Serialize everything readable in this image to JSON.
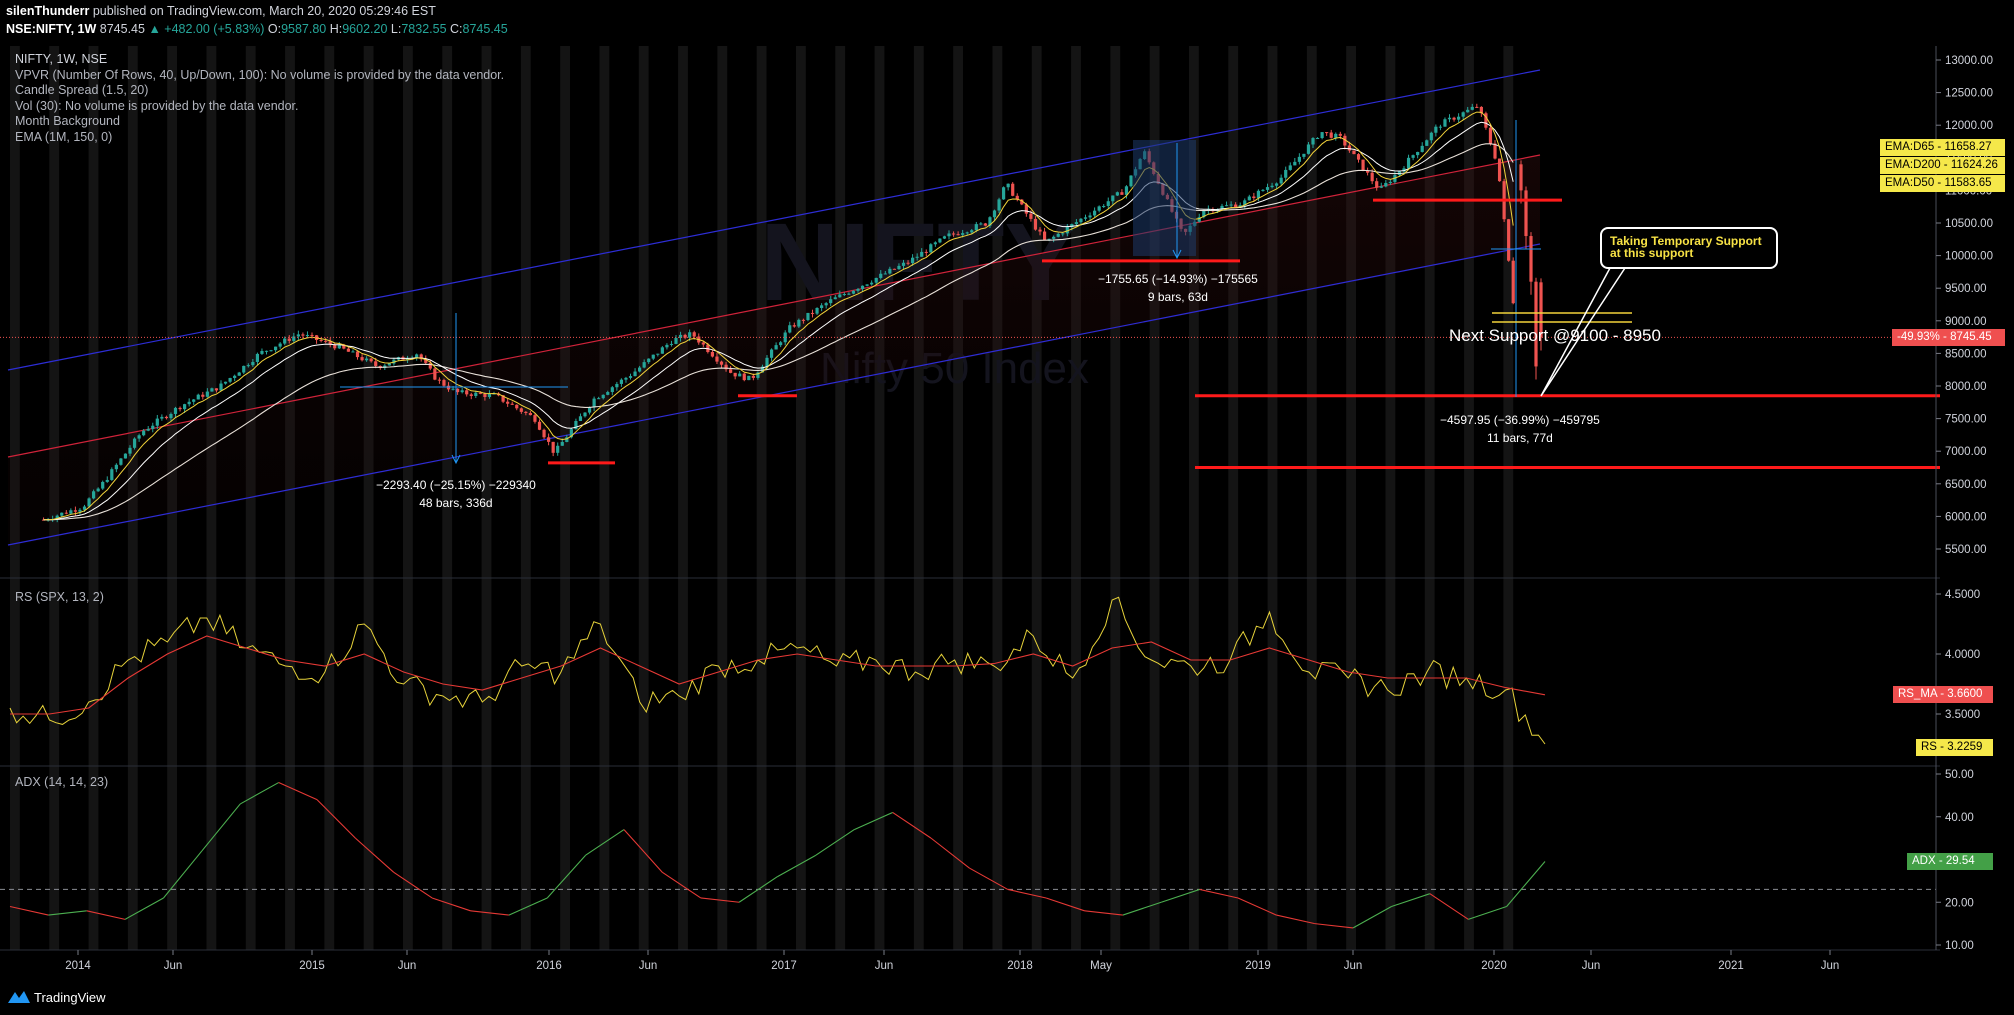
{
  "header": {
    "author": "silenThunderr",
    "published": "published on TradingView.com, March 20, 2020 05:29:46 EST",
    "symbol": "NSE:NIFTY, 1W",
    "price": "8745.45",
    "change": "▲ +482.00 (+5.83%)",
    "o_label": "O:",
    "o_val": "9587.80",
    "h_label": "H:",
    "h_val": "9602.20",
    "l_label": "L:",
    "l_val": "7832.55",
    "c_label": "C:",
    "c_val": "8745.45"
  },
  "legend": {
    "main": [
      "NIFTY, 1W, NSE",
      "VPVR (Number Of Rows, 40, Up/Down, 100): No volume is provided by the data vendor.",
      "Candle Spread (1.5, 20)",
      "Vol (30): No volume is provided by the data vendor.",
      "Month Background",
      "EMA (1M, 150, 0)"
    ],
    "rs": "RS (SPX, 13, 2)",
    "adx": "ADX (14, 14, 23)"
  },
  "annotations": {
    "m1_line1": "−2293.40 (−25.15%) −229340",
    "m1_line2": "48 bars, 336d",
    "m2_line1": "−1755.65 (−14.93%) −175565",
    "m2_line2": "9 bars, 63d",
    "m3_line1": "−4597.95 (−36.99%) −459795",
    "m3_line2": "11 bars, 77d",
    "next_support": "Next Support @9100 - 8950",
    "callout_line1": "Taking Temporary Support",
    "callout_line2": "at this support",
    "watermark_symbol": "NIFTY",
    "watermark_name": "Nifty 50 Index"
  },
  "badges": {
    "ema65": "EMA:D65",
    "ema65_val": "11658.27",
    "ema200": "EMA:D200",
    "ema200_val": "11624.26",
    "ema50": "EMA:D50",
    "ema50_val": "11583.65",
    "price_pct": "-49.93%",
    "price_val": "8745.45",
    "rs_ma": "RS_MA",
    "rs_ma_val": "3.6600",
    "rs": "RS",
    "rs_val": "3.2259",
    "adx": "ADX",
    "adx_val": "29.54"
  },
  "footer": {
    "brand": "TradingView"
  },
  "colors": {
    "up": "#26a69a",
    "down": "#ef5350",
    "channel_blue": "#2d2dd6",
    "channel_red": "#d0233a",
    "support_red": "#ff1a1a",
    "ema_yellow": "#f2d33a",
    "rs_line": "#e6d23a",
    "rs_ma": "#e53935",
    "adx_green": "#4caf50",
    "adx_red": "#e53935",
    "measure_blue": "#2196f3"
  },
  "chart_data": [
    {
      "type": "candlestick",
      "title": "NIFTY, 1W, NSE",
      "x_ticks": [
        "2014",
        "Jun",
        "2015",
        "Jun",
        "2016",
        "Jun",
        "2017",
        "Jun",
        "2018",
        "May",
        "2019",
        "Jun",
        "2020",
        "Jun",
        "2021",
        "Jun"
      ],
      "y_ticks": [
        13000,
        12500,
        12000,
        11500,
        11000,
        10500,
        10000,
        9500,
        9000,
        8500,
        8000,
        7500,
        7000,
        6500,
        6000,
        5500
      ],
      "ylim": [
        5000,
        13200
      ],
      "close_path": [
        [
          "2013-12",
          5950
        ],
        [
          "2014-02",
          6150
        ],
        [
          "2014-03",
          6500
        ],
        [
          "2014-05",
          7300
        ],
        [
          "2014-07",
          7700
        ],
        [
          "2014-09",
          8000
        ],
        [
          "2014-11",
          8500
        ],
        [
          "2015-01",
          8800
        ],
        [
          "2015-03",
          8600
        ],
        [
          "2015-05",
          8300
        ],
        [
          "2015-07",
          8500
        ],
        [
          "2015-08",
          8100
        ],
        [
          "2015-09",
          7900
        ],
        [
          "2015-11",
          7850
        ],
        [
          "2016-01",
          7500
        ],
        [
          "2016-02",
          6970
        ],
        [
          "2016-04",
          7800
        ],
        [
          "2016-06",
          8200
        ],
        [
          "2016-08",
          8700
        ],
        [
          "2016-09",
          8800
        ],
        [
          "2016-11",
          8200
        ],
        [
          "2016-12",
          8100
        ],
        [
          "2017-02",
          8900
        ],
        [
          "2017-04",
          9300
        ],
        [
          "2017-06",
          9600
        ],
        [
          "2017-08",
          9900
        ],
        [
          "2017-10",
          10300
        ],
        [
          "2017-12",
          10500
        ],
        [
          "2018-01",
          11100
        ],
        [
          "2018-03",
          10200
        ],
        [
          "2018-05",
          10600
        ],
        [
          "2018-07",
          11000
        ],
        [
          "2018-08",
          11600
        ],
        [
          "2018-10",
          10300
        ],
        [
          "2018-11",
          10700
        ],
        [
          "2019-01",
          10800
        ],
        [
          "2019-03",
          11200
        ],
        [
          "2019-05",
          11900
        ],
        [
          "2019-06",
          11800
        ],
        [
          "2019-08",
          11000
        ],
        [
          "2019-09",
          11300
        ],
        [
          "2019-11",
          12000
        ],
        [
          "2020-01",
          12300
        ],
        [
          "2020-02",
          11400
        ],
        [
          "2020-03",
          8745
        ]
      ],
      "support_levels": [
        10850,
        7850,
        6750
      ],
      "measurements": [
        {
          "change": -2293.4,
          "pct": -25.15,
          "bars": 48,
          "days": 336
        },
        {
          "change": -1755.65,
          "pct": -14.93,
          "bars": 9,
          "days": 63
        },
        {
          "change": -4597.95,
          "pct": -36.99,
          "bars": 11,
          "days": 77
        }
      ],
      "last_price": 8745.45,
      "ema": {
        "D65": 11658.27,
        "D200": 11624.26,
        "D50": 11583.65
      }
    },
    {
      "type": "line",
      "title": "RS (SPX, 13, 2)",
      "y_ticks": [
        4.5,
        4.0,
        3.5
      ],
      "ylim": [
        2.7,
        4.6
      ],
      "series": [
        {
          "name": "RS",
          "last": 3.2259,
          "values": [
            3.55,
            3.45,
            3.6,
            3.95,
            4.1,
            4.3,
            4.05,
            3.9,
            3.85,
            4.25,
            3.75,
            3.65,
            3.6,
            3.9,
            3.85,
            4.25,
            3.6,
            3.65,
            3.9,
            3.95,
            4.05,
            3.9,
            3.95,
            3.85,
            3.95,
            3.9,
            4.15,
            3.8,
            4.45,
            3.95,
            3.9,
            3.95,
            4.35,
            3.85,
            3.8,
            3.7,
            3.85,
            3.8,
            3.7,
            3.25
          ]
        },
        {
          "name": "RS_MA",
          "last": 3.66,
          "values": [
            3.5,
            3.5,
            3.55,
            3.8,
            4.0,
            4.15,
            4.05,
            3.95,
            3.9,
            4.0,
            3.85,
            3.75,
            3.7,
            3.8,
            3.9,
            4.05,
            3.9,
            3.75,
            3.85,
            3.95,
            4.0,
            3.95,
            3.9,
            3.9,
            3.9,
            3.92,
            4.0,
            3.9,
            4.05,
            4.1,
            3.95,
            3.95,
            4.05,
            3.95,
            3.85,
            3.8,
            3.8,
            3.8,
            3.72,
            3.66
          ]
        }
      ]
    },
    {
      "type": "line",
      "title": "ADX (14, 14, 23)",
      "y_ticks": [
        50,
        40,
        20,
        10
      ],
      "ylim": [
        10,
        50
      ],
      "threshold": 23,
      "series": [
        {
          "name": "ADX",
          "last": 29.54,
          "values": [
            19,
            17,
            18,
            16,
            21,
            32,
            43,
            48,
            44,
            35,
            27,
            21,
            18,
            17,
            21,
            31,
            37,
            27,
            21,
            20,
            26,
            31,
            37,
            41,
            35,
            28,
            23,
            21,
            18,
            17,
            20,
            23,
            21,
            17,
            15,
            14,
            19,
            22,
            16,
            19,
            29.54
          ]
        }
      ]
    }
  ]
}
